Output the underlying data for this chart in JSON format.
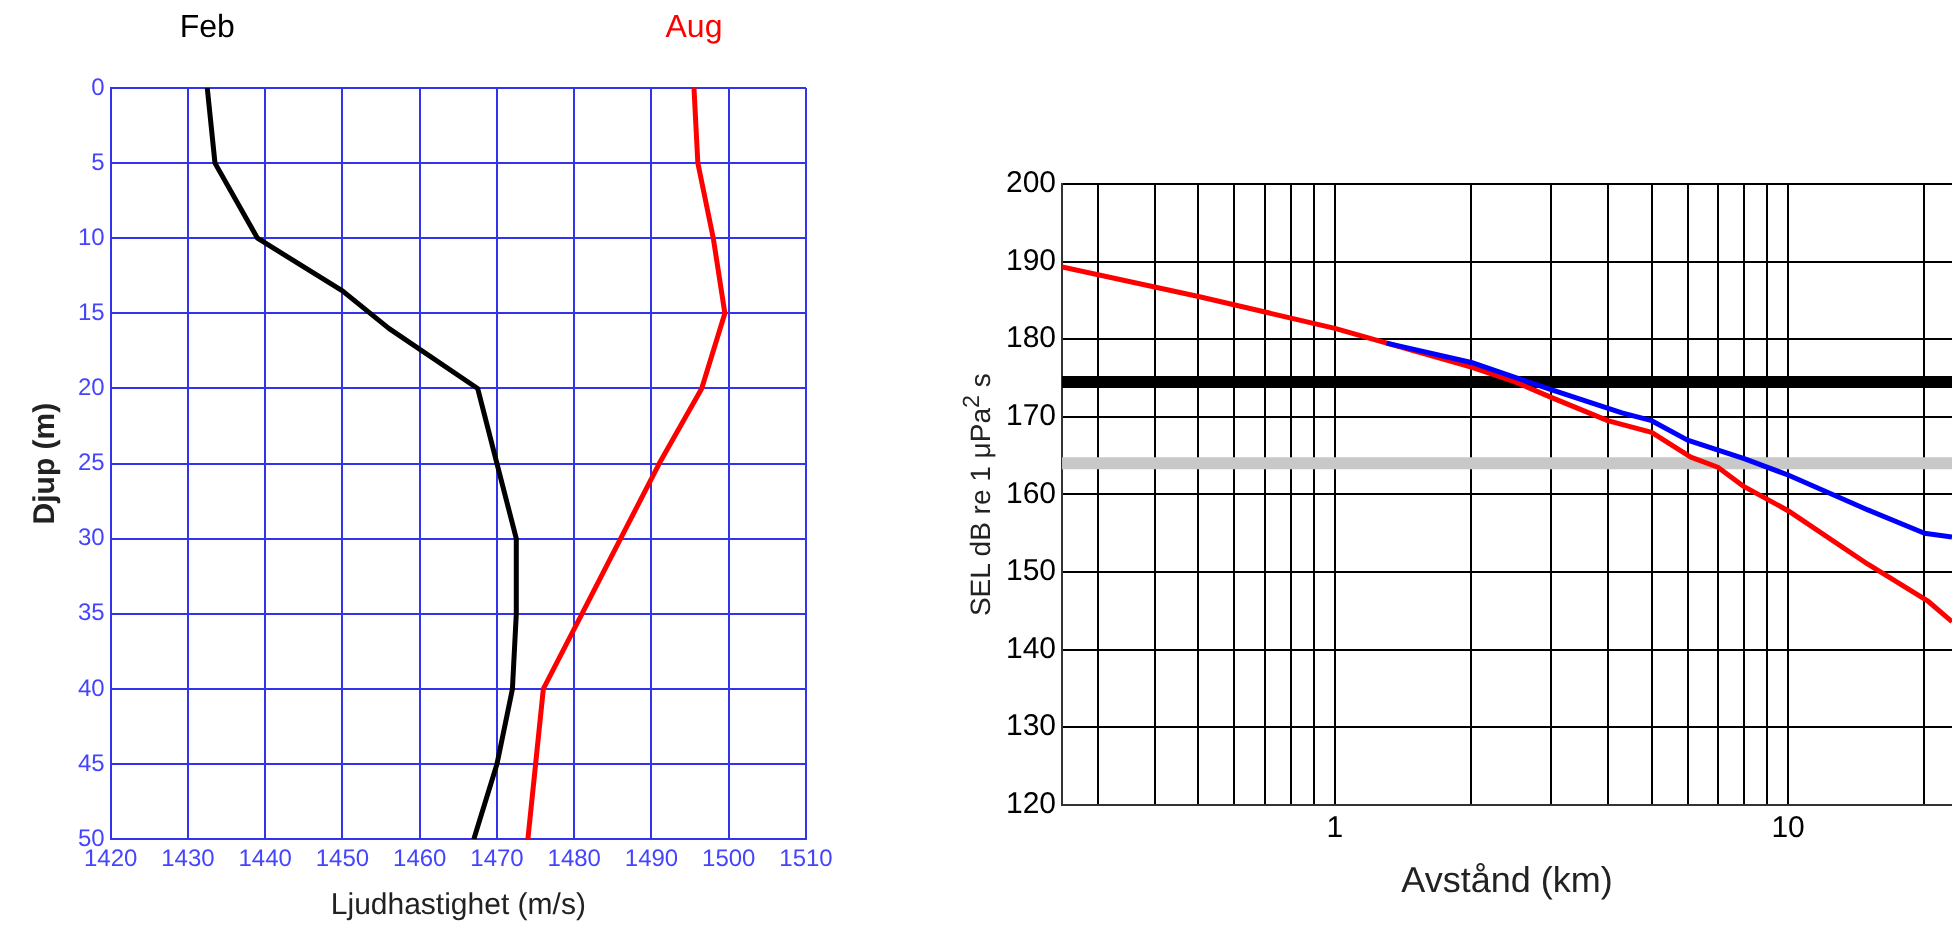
{
  "chart_data": [
    {
      "type": "line",
      "xlabel": "Ljudhastighet (m/s)",
      "ylabel": "Djup (m)",
      "xlim": [
        1420,
        1510
      ],
      "xticks": [
        1420,
        1430,
        1440,
        1450,
        1460,
        1470,
        1480,
        1490,
        1500,
        1510
      ],
      "ylim": [
        50,
        0
      ],
      "yticks": [
        0,
        5,
        10,
        15,
        20,
        25,
        30,
        35,
        40,
        45,
        50
      ],
      "grid": true,
      "legend": false,
      "marker": "none",
      "series": [
        {
          "name": "Feb",
          "color": "#000000",
          "x": [
            1432.5,
            1433.5,
            1439,
            1450,
            1456,
            1467.5,
            1470,
            1472.5,
            1472.5,
            1472,
            1470,
            1467
          ],
          "values": [
            0,
            5,
            10,
            13.5,
            16,
            20,
            25,
            30,
            35,
            40,
            45,
            50
          ]
        },
        {
          "name": "Aug",
          "color": "#ff0000",
          "x": [
            1495.5,
            1496,
            1498,
            1499.5,
            1496.5,
            1491,
            1486,
            1481,
            1476,
            1475,
            1474
          ],
          "values": [
            0,
            5,
            10,
            15,
            20,
            25,
            30,
            35,
            40,
            45,
            50
          ]
        }
      ]
    },
    {
      "type": "line",
      "xlabel": "Avstånd (km)",
      "ylabel": "SEL dB re 1 μPa$^{2}$ s",
      "log": "x",
      "xlim": [
        0.25,
        23
      ],
      "xticks": [
        {
          "value": 0.3,
          "label": null
        },
        {
          "value": 0.4,
          "label": null
        },
        {
          "value": 0.5,
          "label": null
        },
        {
          "value": 0.6,
          "label": null
        },
        {
          "value": 0.7,
          "label": null
        },
        {
          "value": 0.8,
          "label": null
        },
        {
          "value": 0.9,
          "label": null
        },
        1,
        {
          "value": 2,
          "label": null
        },
        {
          "value": 3,
          "label": null
        },
        {
          "value": 4,
          "label": null
        },
        {
          "value": 5,
          "label": null
        },
        {
          "value": 6,
          "label": null
        },
        {
          "value": 7,
          "label": null
        },
        {
          "value": 8,
          "label": null
        },
        {
          "value": 9,
          "label": null
        },
        10,
        {
          "value": 20,
          "label": null
        }
      ],
      "ylim": [
        120,
        200
      ],
      "yticks": [
        120,
        130,
        140,
        150,
        160,
        170,
        180,
        190,
        200
      ],
      "grid": true,
      "legend": false,
      "marker": "none",
      "series": [
        {
          "color": "#0000ff",
          "x": [
            1.3,
            2,
            3,
            4.3,
            5,
            6,
            8,
            10,
            15,
            20,
            23
          ],
          "values": [
            179.5,
            177,
            173.5,
            170.5,
            169.5,
            167,
            164.6,
            162.5,
            158,
            155,
            154.5
          ]
        },
        {
          "color": "#ff0000",
          "x": [
            0.25,
            0.5,
            1,
            2,
            2.5,
            3,
            4,
            5,
            6.1,
            7,
            8,
            10,
            15,
            20.4,
            23
          ],
          "values": [
            189.3,
            185.5,
            181.4,
            176.4,
            174.5,
            172.5,
            169.5,
            168,
            164.8,
            163.5,
            161,
            157.9,
            151,
            146.2,
            143.6
          ]
        }
      ],
      "ref_lines": [
        {
          "axis": "y",
          "value": 174.5,
          "color": "#000000"
        },
        {
          "axis": "y",
          "value": 164,
          "color": "#c8c8c8"
        }
      ]
    }
  ]
}
